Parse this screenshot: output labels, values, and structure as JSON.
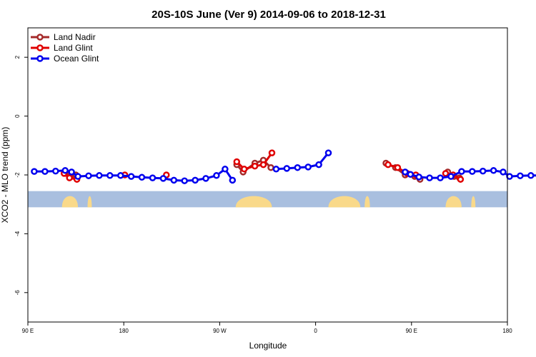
{
  "chart_data": {
    "type": "line",
    "title": "20S-10S June (Ver 9)   2014-09-06 to 2018-12-31",
    "xlabel": "Longitude",
    "ylabel": "XCO2 - MLO trend (ppm)",
    "x_domain": [
      90,
      540
    ],
    "ylim": [
      -7,
      3
    ],
    "x_ticks": [
      {
        "value": 90,
        "label": "90 E"
      },
      {
        "value": 180,
        "label": "180"
      },
      {
        "value": 270,
        "label": "90 W"
      },
      {
        "value": 360,
        "label": "0"
      },
      {
        "value": 450,
        "label": "90 E"
      },
      {
        "value": 540,
        "label": "180"
      }
    ],
    "y_ticks": [
      {
        "value": 2,
        "label": "2"
      },
      {
        "value": 0,
        "label": "0"
      },
      {
        "value": -2,
        "label": "-2"
      },
      {
        "value": -4,
        "label": "-4"
      },
      {
        "value": -6,
        "label": "-6"
      }
    ],
    "map_strip": {
      "y_range": [
        -2.55,
        -3.1
      ],
      "ocean_color": "#a9bfdf",
      "land_color": "#f9d98a",
      "land_regions": [
        {
          "name": "Australia",
          "x": [
            [
              122,
              137
            ],
            [
              146,
              150
            ]
          ]
        },
        {
          "name": "South America",
          "x": [
            [
              285,
              319
            ]
          ]
        },
        {
          "name": "Africa",
          "x": [
            [
              372,
              402
            ],
            [
              406,
              411
            ]
          ]
        },
        {
          "name": "Australia",
          "x": [
            [
              482,
              497
            ],
            [
              506,
              510
            ]
          ]
        }
      ]
    },
    "legend": {
      "position": "top-left"
    },
    "series": [
      {
        "name": "Land Nadir",
        "color": "#a52a2a",
        "segments": [
          [
            [
              125,
              -1.95
            ],
            [
              130,
              -2.05
            ],
            [
              135,
              -2.0
            ]
          ],
          [
            [
              286,
              -1.65
            ],
            [
              292,
              -1.9
            ],
            [
              303,
              -1.6
            ],
            [
              311,
              -1.5
            ],
            [
              318,
              -1.75
            ]
          ],
          [
            [
              426,
              -1.6
            ],
            [
              435,
              -1.75
            ],
            [
              444,
              -2.0
            ],
            [
              453,
              -2.05
            ],
            [
              458,
              -2.15
            ]
          ],
          [
            [
              484,
              -1.9
            ],
            [
              490,
              -2.05
            ],
            [
              495,
              -2.1
            ]
          ]
        ]
      },
      {
        "name": "Land Glint",
        "color": "#e00000",
        "segments": [
          [
            [
              124,
              -1.95
            ],
            [
              129,
              -2.1
            ],
            [
              136,
              -2.15
            ]
          ],
          [
            [
              181,
              -2.0
            ]
          ],
          [
            [
              220,
              -2.0
            ]
          ],
          [
            [
              286,
              -1.55
            ],
            [
              293,
              -1.8
            ],
            [
              303,
              -1.7
            ],
            [
              311,
              -1.65
            ],
            [
              319,
              -1.25
            ]
          ],
          [
            [
              428,
              -1.65
            ],
            [
              437,
              -1.75
            ],
            [
              446,
              -1.95
            ],
            [
              454,
              -2.0
            ]
          ],
          [
            [
              482,
              -1.95
            ],
            [
              489,
              -2.0
            ],
            [
              496,
              -2.15
            ]
          ]
        ]
      },
      {
        "name": "Ocean Glint",
        "color": "#0000ee",
        "segments": [
          [
            [
              96,
              -1.88
            ],
            [
              106,
              -1.88
            ],
            [
              116,
              -1.87
            ],
            [
              125,
              -1.85
            ],
            [
              131,
              -1.9
            ],
            [
              137,
              -2.05
            ],
            [
              147,
              -2.03
            ],
            [
              157,
              -2.02
            ],
            [
              167,
              -2.02
            ],
            [
              177,
              -2.02
            ],
            [
              187,
              -2.05
            ],
            [
              197,
              -2.08
            ],
            [
              207,
              -2.1
            ],
            [
              217,
              -2.12
            ],
            [
              227,
              -2.18
            ],
            [
              237,
              -2.2
            ],
            [
              247,
              -2.18
            ],
            [
              257,
              -2.12
            ],
            [
              267,
              -2.02
            ],
            [
              275,
              -1.8
            ],
            [
              282,
              -2.18
            ]
          ],
          [
            [
              323,
              -1.8
            ],
            [
              333,
              -1.78
            ],
            [
              343,
              -1.75
            ],
            [
              353,
              -1.73
            ],
            [
              363,
              -1.65
            ],
            [
              372,
              -1.25
            ]
          ],
          [
            [
              444,
              -1.9
            ],
            [
              449,
              -1.98
            ],
            [
              457,
              -2.07
            ],
            [
              467,
              -2.1
            ],
            [
              477,
              -2.1
            ],
            [
              487,
              -2.05
            ],
            [
              497,
              -1.88
            ],
            [
              507,
              -1.88
            ],
            [
              517,
              -1.87
            ],
            [
              527,
              -1.85
            ],
            [
              536,
              -1.9
            ],
            [
              542,
              -2.05
            ],
            [
              552,
              -2.03
            ],
            [
              562,
              -2.02
            ],
            [
              572,
              -2.02
            ]
          ]
        ]
      }
    ]
  }
}
